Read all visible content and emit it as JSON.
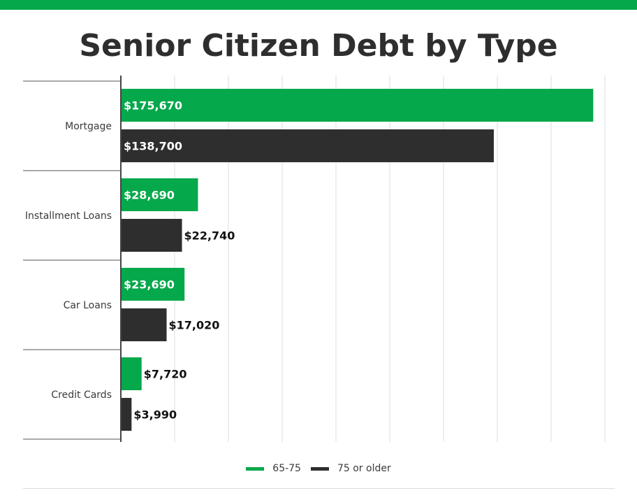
{
  "chart_data": {
    "type": "bar",
    "orientation": "horizontal",
    "title": "Senior Citizen Debt by Type",
    "categories": [
      "Mortgage",
      "Installment Loans",
      "Car Loans",
      "Credit Cards"
    ],
    "series": [
      {
        "name": "65-75",
        "color": "#05a84b",
        "values": [
          175670,
          28690,
          23690,
          7720
        ],
        "labels": [
          "$175,670",
          "$28,690",
          "$23,690",
          "$7,720"
        ]
      },
      {
        "name": "75 or older",
        "color": "#2e2e2e",
        "values": [
          138700,
          22740,
          17020,
          3990
        ],
        "labels": [
          "$138,700",
          "$22,740",
          "$17,020",
          "$3,990"
        ]
      }
    ],
    "xlim": [
      0,
      180000
    ],
    "grid": true,
    "legend_position": "bottom-center"
  },
  "theme": {
    "accent": "#05a84b",
    "dark": "#2e2e2e",
    "grid": "#dcdcdc",
    "label_dark": "#111111",
    "label_light": "#ffffff"
  }
}
